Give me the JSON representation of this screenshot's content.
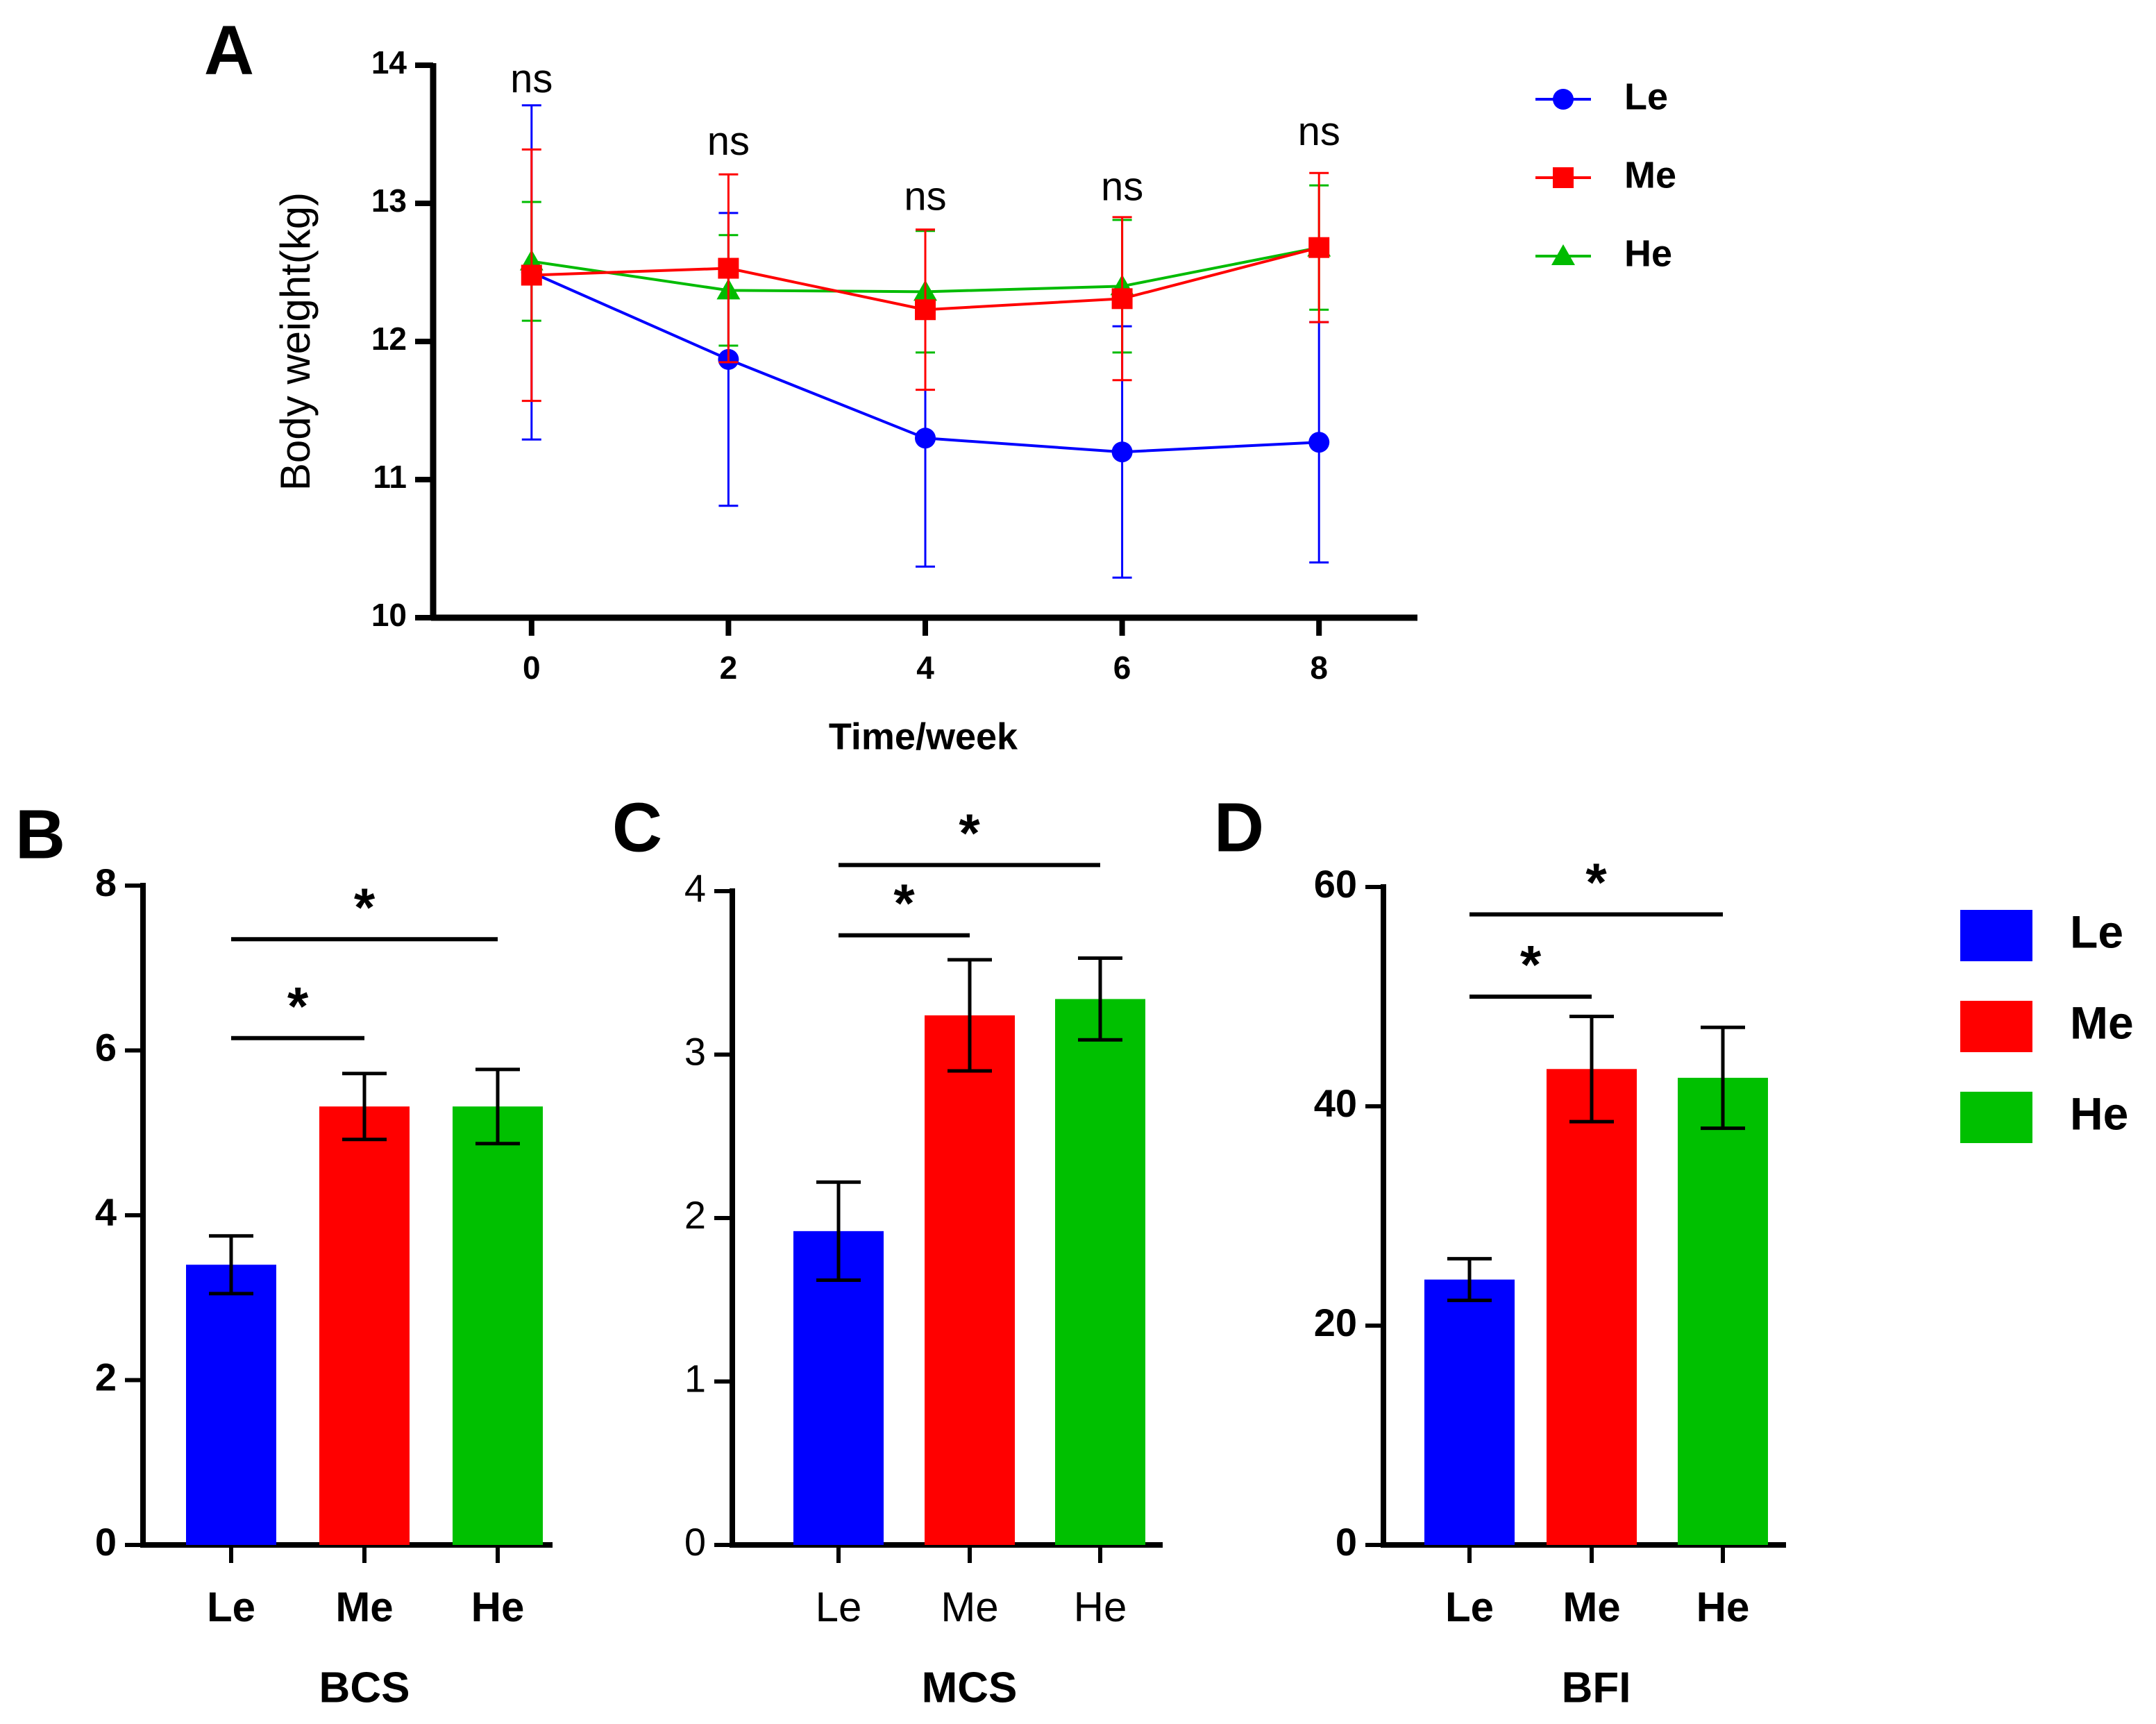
{
  "chart_data": [
    {
      "panel": "A",
      "type": "line",
      "title": "",
      "xlabel": "Time/week",
      "ylabel": "Body weight(kg)",
      "x": [
        0,
        2,
        4,
        6,
        8
      ],
      "xlim": [
        -1,
        9
      ],
      "ylim": [
        10,
        14
      ],
      "yticks": [
        "10",
        "11",
        "12",
        "13",
        "14"
      ],
      "xticks": [
        "0",
        "2",
        "4",
        "6",
        "8"
      ],
      "series": [
        {
          "name": "Le",
          "color": "#0000ff",
          "marker": "circle",
          "values": [
            12.5,
            11.87,
            11.3,
            11.2,
            11.27
          ],
          "errors": [
            1.21,
            1.06,
            0.93,
            0.91,
            0.87
          ]
        },
        {
          "name": "Me",
          "color": "#ff0000",
          "marker": "square",
          "values": [
            12.48,
            12.53,
            12.23,
            12.31,
            12.68
          ],
          "errors": [
            0.91,
            0.68,
            0.58,
            0.59,
            0.54
          ]
        },
        {
          "name": "He",
          "color": "#00bb00",
          "marker": "triangle",
          "values": [
            12.58,
            12.37,
            12.36,
            12.4,
            12.68
          ],
          "errors": [
            0.43,
            0.4,
            0.44,
            0.48,
            0.45
          ]
        }
      ],
      "annotations": [
        {
          "x": 0,
          "text": "ns",
          "y": 13.88
        },
        {
          "x": 2,
          "text": "ns",
          "y": 13.43
        },
        {
          "x": 4,
          "text": "ns",
          "y": 13.03
        },
        {
          "x": 6,
          "text": "ns",
          "y": 13.1
        },
        {
          "x": 8,
          "text": "ns",
          "y": 13.5
        }
      ],
      "legend_position": "right"
    },
    {
      "panel": "B",
      "type": "bar",
      "xlabel": "BCS",
      "ylabel": "",
      "categories": [
        "Le",
        "Me",
        "He"
      ],
      "colors": [
        "#0000ff",
        "#ff0000",
        "#00c000"
      ],
      "values": [
        3.4,
        5.32,
        5.32
      ],
      "errors": [
        0.35,
        0.4,
        0.45
      ],
      "ylim": [
        0,
        8
      ],
      "yticks": [
        "0",
        "2",
        "4",
        "6",
        "8"
      ],
      "significance": [
        {
          "from": 0,
          "to": 1,
          "label": "*",
          "y": 6.15
        },
        {
          "from": 0,
          "to": 2,
          "label": "*",
          "y": 7.35
        }
      ]
    },
    {
      "panel": "C",
      "type": "bar",
      "xlabel": "MCS",
      "ylabel": "",
      "categories": [
        "Le",
        "Me",
        "He"
      ],
      "colors": [
        "#0000ff",
        "#ff0000",
        "#00c000"
      ],
      "values": [
        1.92,
        3.24,
        3.34
      ],
      "errors": [
        0.3,
        0.34,
        0.25
      ],
      "ylim": [
        0,
        4
      ],
      "yticks": [
        "0",
        "1",
        "2",
        "3",
        "4"
      ],
      "significance": [
        {
          "from": 0,
          "to": 1,
          "label": "*",
          "y": 3.73
        },
        {
          "from": 0,
          "to": 2,
          "label": "*",
          "y": 4.16
        }
      ]
    },
    {
      "panel": "D",
      "type": "bar",
      "xlabel": "BFI",
      "ylabel": "",
      "categories": [
        "Le",
        "Me",
        "He"
      ],
      "colors": [
        "#0000ff",
        "#ff0000",
        "#00c000"
      ],
      "values": [
        24.2,
        43.4,
        42.6
      ],
      "errors": [
        1.9,
        4.8,
        4.6
      ],
      "ylim": [
        0,
        60
      ],
      "yticks": [
        "0",
        "20",
        "40",
        "60"
      ],
      "significance": [
        {
          "from": 0,
          "to": 1,
          "label": "*",
          "y": 50
        },
        {
          "from": 0,
          "to": 2,
          "label": "*",
          "y": 57.5
        }
      ]
    }
  ],
  "legend_bars": {
    "items": [
      {
        "name": "Le",
        "color": "#0000ff"
      },
      {
        "name": "Me",
        "color": "#ff0000"
      },
      {
        "name": "He",
        "color": "#00c000"
      }
    ]
  }
}
